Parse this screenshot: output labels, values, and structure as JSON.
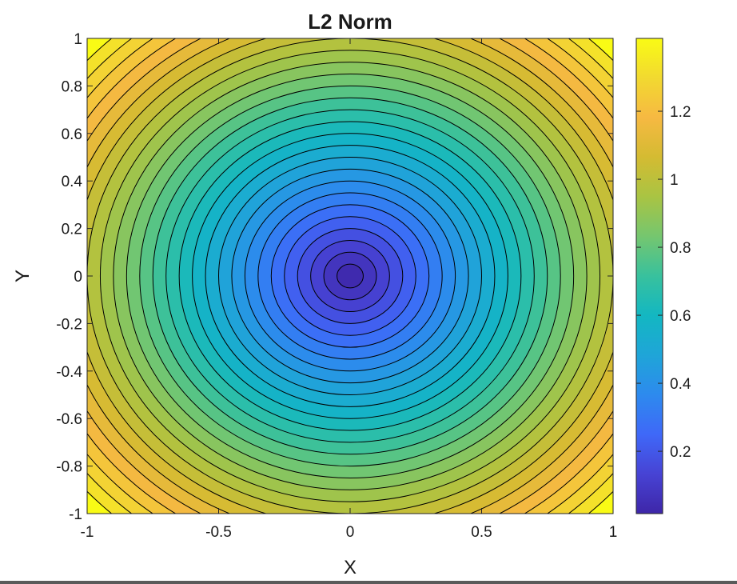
{
  "chart_data": {
    "type": "contour",
    "title": "L2 Norm",
    "xlabel": "X",
    "ylabel": "Y",
    "xlim": [
      -1,
      1
    ],
    "ylim": [
      -1,
      1
    ],
    "function": "sqrt(x^2 + y^2)",
    "contour_levels": [
      0.05,
      0.1,
      0.15,
      0.2,
      0.25,
      0.3,
      0.35,
      0.4,
      0.45,
      0.5,
      0.55,
      0.6,
      0.65,
      0.7,
      0.75,
      0.8,
      0.85,
      0.9,
      0.95,
      1.0,
      1.05,
      1.1,
      1.15,
      1.2,
      1.25,
      1.3,
      1.35
    ],
    "x_ticks": [
      {
        "value": -1,
        "label": "-1"
      },
      {
        "value": -0.5,
        "label": "-0.5"
      },
      {
        "value": 0,
        "label": "0"
      },
      {
        "value": 0.5,
        "label": "0.5"
      },
      {
        "value": 1,
        "label": "1"
      }
    ],
    "y_ticks": [
      {
        "value": 1,
        "label": "1"
      },
      {
        "value": 0.8,
        "label": "0.8"
      },
      {
        "value": 0.6,
        "label": "0.6"
      },
      {
        "value": 0.4,
        "label": "0.4"
      },
      {
        "value": 0.2,
        "label": "0.2"
      },
      {
        "value": 0,
        "label": "0"
      },
      {
        "value": -0.2,
        "label": "-0.2"
      },
      {
        "value": -0.4,
        "label": "-0.4"
      },
      {
        "value": -0.6,
        "label": "-0.6"
      },
      {
        "value": -0.8,
        "label": "-0.8"
      },
      {
        "value": -1,
        "label": "-1"
      }
    ],
    "colorbar": {
      "range": [
        0.0167,
        1.4142
      ],
      "colormap": "parula",
      "ticks": [
        {
          "value": 0.2,
          "label": "0.2"
        },
        {
          "value": 0.4,
          "label": "0.4"
        },
        {
          "value": 0.6,
          "label": "0.6"
        },
        {
          "value": 0.8,
          "label": "0.8"
        },
        {
          "value": 1.0,
          "label": "1"
        },
        {
          "value": 1.2,
          "label": "1.2"
        }
      ]
    },
    "contour_line_color": "#000000",
    "colormap_stops": [
      "#3e26a8",
      "#4743d4",
      "#3f68f8",
      "#2d8aee",
      "#1fa5d8",
      "#13b7c2",
      "#38c19d",
      "#75c66f",
      "#a9c443",
      "#d4bb32",
      "#f6b942",
      "#f2d930",
      "#f9fb15"
    ]
  }
}
